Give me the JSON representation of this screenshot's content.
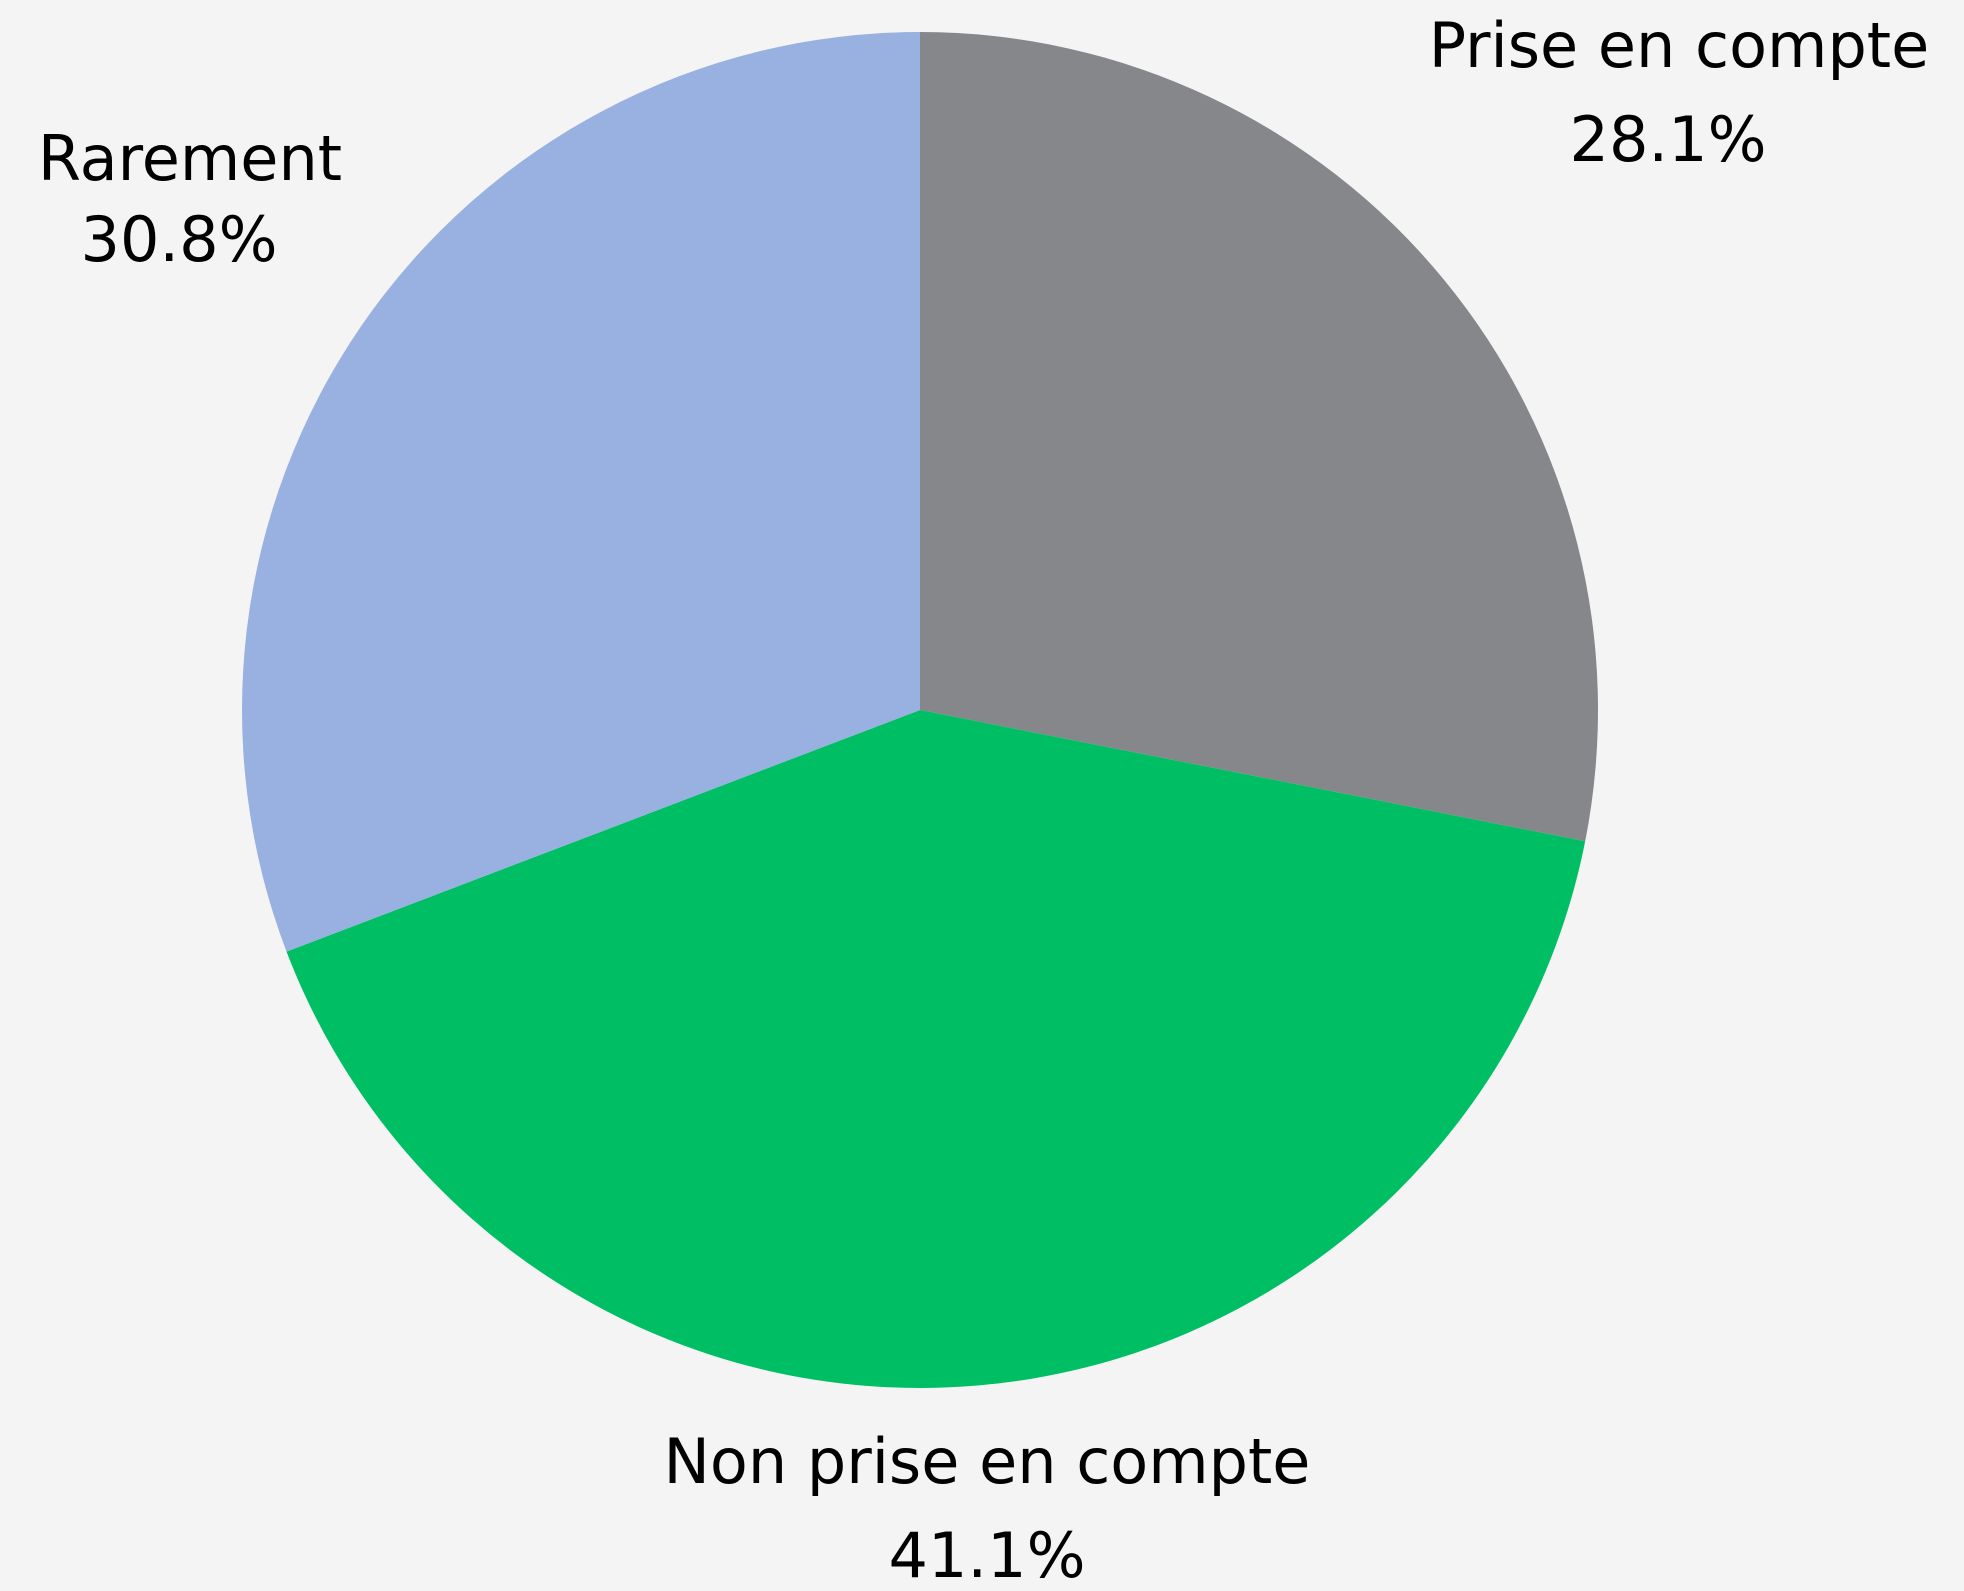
{
  "chart_data": {
    "type": "pie",
    "categories": [
      "Prise en compte",
      "Non prise en compte",
      "Rarement"
    ],
    "values": [
      28.1,
      41.1,
      30.8
    ],
    "value_labels": [
      "28.1%",
      "41.1%",
      "30.8%"
    ],
    "colors": [
      "#86878b",
      "#00be64",
      "#99b1e0"
    ]
  }
}
